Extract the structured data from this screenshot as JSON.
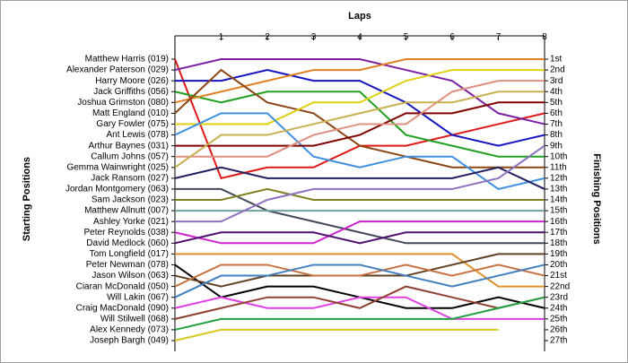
{
  "chart_data": {
    "type": "line",
    "title": "Laps",
    "y_label": "Starting Positions",
    "y2_label": "Finishing Positions",
    "x": [
      0,
      1,
      2,
      3,
      4,
      5,
      6,
      7,
      8
    ],
    "xlim": [
      0,
      8
    ],
    "xticks": [
      1,
      2,
      3,
      4,
      5,
      6,
      7,
      8
    ],
    "ylim": [
      1,
      27
    ],
    "y_reversed": true,
    "y2ticks": [
      {
        "value": 1,
        "label": "1st"
      },
      {
        "value": 2,
        "label": "2nd"
      },
      {
        "value": 3,
        "label": "3rd"
      },
      {
        "value": 4,
        "label": "4th"
      },
      {
        "value": 5,
        "label": "5th"
      },
      {
        "value": 6,
        "label": "6th"
      },
      {
        "value": 7,
        "label": "7th"
      },
      {
        "value": 8,
        "label": "8th"
      },
      {
        "value": 9,
        "label": "9th"
      },
      {
        "value": 10,
        "label": "10th"
      },
      {
        "value": 11,
        "label": "11th"
      },
      {
        "value": 12,
        "label": "12th"
      },
      {
        "value": 13,
        "label": "13th"
      },
      {
        "value": 14,
        "label": "14th"
      },
      {
        "value": 15,
        "label": "15th"
      },
      {
        "value": 16,
        "label": "16th"
      },
      {
        "value": 17,
        "label": "17th"
      },
      {
        "value": 18,
        "label": "18th"
      },
      {
        "value": 19,
        "label": "19th"
      },
      {
        "value": 20,
        "label": "20th"
      },
      {
        "value": 21,
        "label": "21st"
      },
      {
        "value": 22,
        "label": "22nd"
      },
      {
        "value": 23,
        "label": "23rd"
      },
      {
        "value": 24,
        "label": "24th"
      },
      {
        "value": 25,
        "label": "25th"
      },
      {
        "value": 26,
        "label": "26th"
      },
      {
        "value": 27,
        "label": "27th"
      }
    ],
    "series": [
      {
        "name": "Matthew Harris (019)",
        "color": "#e01818",
        "values": [
          1,
          12,
          11,
          11,
          9,
          9,
          8,
          7,
          6
        ]
      },
      {
        "name": "Alexander Paterson (029)",
        "color": "#7b1fa2",
        "values": [
          2,
          1,
          1,
          1,
          1,
          2,
          3,
          6,
          7
        ]
      },
      {
        "name": "Harry Moore (026)",
        "color": "#1414c0",
        "values": [
          3,
          3,
          2,
          3,
          3,
          5,
          8,
          9,
          8
        ]
      },
      {
        "name": "Jack Griffiths (056)",
        "color": "#22a022",
        "values": [
          4,
          5,
          4,
          4,
          4,
          8,
          9,
          10,
          10
        ]
      },
      {
        "name": "Joshua Grimston (080)",
        "color": "#e08020",
        "values": [
          5,
          4,
          3,
          2,
          2,
          1,
          1,
          1,
          1
        ]
      },
      {
        "name": "Matt England (010)",
        "color": "#8b4513",
        "values": [
          6,
          2,
          5,
          6,
          9,
          10,
          11,
          11,
          11
        ]
      },
      {
        "name": "Gary Fowler (075)",
        "color": "#e0d010",
        "values": [
          7,
          7,
          7,
          5,
          5,
          3,
          2,
          2,
          2
        ]
      },
      {
        "name": "Ant Lewis (078)",
        "color": "#4090e0",
        "values": [
          8,
          6,
          6,
          10,
          11,
          10,
          10,
          13,
          12
        ]
      },
      {
        "name": "Arthur Baynes (031)",
        "color": "#800000",
        "values": [
          9,
          9,
          9,
          9,
          8,
          6,
          6,
          5,
          5
        ]
      },
      {
        "name": "Callum Johns (057)",
        "color": "#e09080",
        "values": [
          10,
          10,
          10,
          8,
          7,
          7,
          4,
          3,
          3
        ]
      },
      {
        "name": "Gemma Wainwright (025)",
        "color": "#c8b050",
        "values": [
          11,
          8,
          8,
          7,
          6,
          5,
          5,
          4,
          4
        ]
      },
      {
        "name": "Jack Ransom (027)",
        "color": "#202060",
        "values": [
          12,
          11,
          12,
          12,
          12,
          12,
          12,
          11,
          13
        ]
      },
      {
        "name": "Jordan Montgomery (063)",
        "color": "#404858",
        "values": [
          13,
          13,
          15,
          16,
          17,
          18,
          18,
          18,
          18
        ]
      },
      {
        "name": "Sam Jackson (023)",
        "color": "#808020",
        "values": [
          14,
          14,
          13,
          14,
          14,
          14,
          14,
          14,
          14
        ]
      },
      {
        "name": "Matthew Allnutt (007)",
        "color": "#70a0a0",
        "values": [
          15,
          15,
          15,
          15,
          15,
          15,
          15,
          15,
          15
        ]
      },
      {
        "name": "Ashley Yorke (021)",
        "color": "#9070c0",
        "values": [
          16,
          16,
          14,
          13,
          13,
          13,
          13,
          12,
          9
        ]
      },
      {
        "name": "Peter Reynolds (038)",
        "color": "#d020d0",
        "values": [
          17,
          18,
          18,
          18,
          16,
          16,
          16,
          16,
          16
        ]
      },
      {
        "name": "David Medlock (060)",
        "color": "#501070",
        "values": [
          18,
          17,
          17,
          17,
          18,
          17,
          17,
          17,
          17
        ]
      },
      {
        "name": "Tom Longfield (017)",
        "color": "#e09030",
        "values": [
          19,
          19,
          19,
          19,
          19,
          19,
          19,
          22,
          22
        ]
      },
      {
        "name": "Peter Newman (078)",
        "color": "#000000",
        "values": [
          20,
          23,
          22,
          22,
          23,
          24,
          24,
          23,
          24
        ]
      },
      {
        "name": "Jason Wilson (063)",
        "color": "#604020",
        "values": [
          21,
          22,
          21,
          21,
          21,
          21,
          20,
          19,
          19
        ]
      },
      {
        "name": "Ciaran McDonald (050)",
        "color": "#c87040",
        "values": [
          22,
          20,
          20,
          21,
          21,
          20,
          21,
          20,
          21
        ]
      },
      {
        "name": "Will Lakin (067)",
        "color": "#4080c0",
        "values": [
          23,
          21,
          21,
          20,
          20,
          21,
          22,
          21,
          20
        ]
      },
      {
        "name": "Craig MacDonald (090)",
        "color": "#e040e0",
        "values": [
          24,
          23,
          24,
          24,
          23,
          23,
          25,
          25,
          25
        ]
      },
      {
        "name": "Will Stilwell (068)",
        "color": "#904030",
        "values": [
          25,
          24,
          23,
          23,
          24,
          22,
          23,
          24,
          23
        ]
      },
      {
        "name": "Alex Kennedy (073)",
        "color": "#20a040",
        "values": [
          26,
          25,
          25,
          25,
          25,
          25,
          25,
          24,
          23
        ]
      },
      {
        "name": "Joseph Bargh (049)",
        "color": "#d8c820",
        "values": [
          27,
          26,
          26,
          26,
          26,
          26,
          26,
          26,
          null
        ]
      }
    ]
  }
}
